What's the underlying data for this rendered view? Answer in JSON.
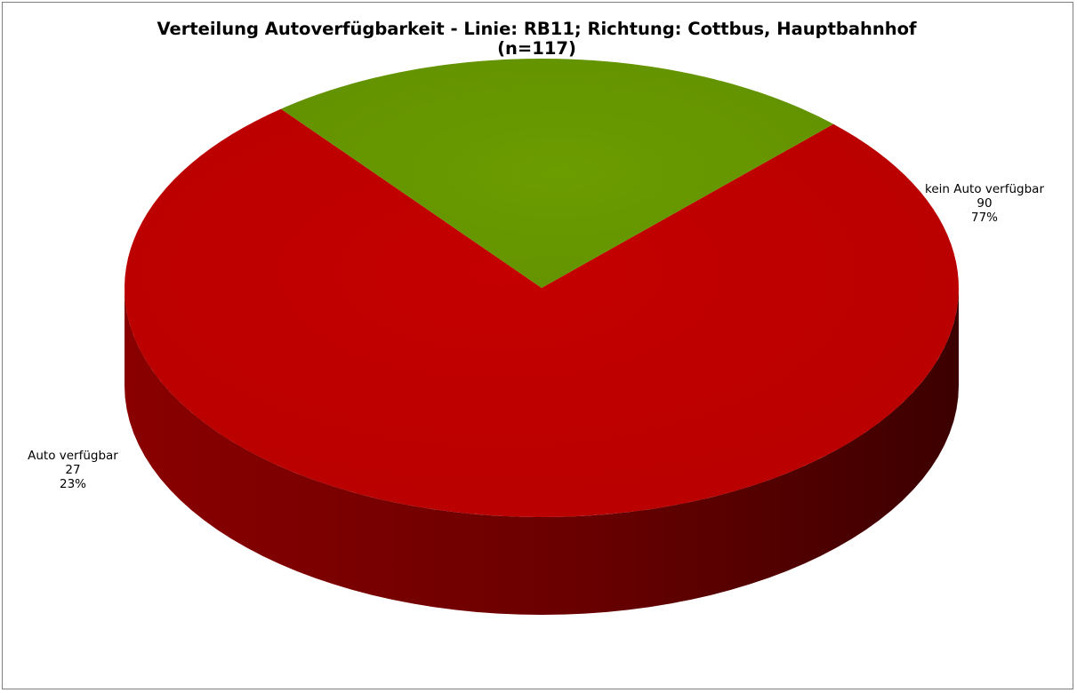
{
  "chart_data": {
    "type": "pie",
    "title": "Verteilung Autoverfügbarkeit - Linie: RB11; Richtung: Cottbus, Hauptbahnhof",
    "subtitle": "(n=117)",
    "total": 117,
    "slices": [
      {
        "label": "kein Auto verfügbar",
        "value": 90,
        "percent_label": "77%",
        "color": "#c00000"
      },
      {
        "label": "Auto verfügbar",
        "value": 27,
        "percent_label": "23%",
        "color": "#669900"
      }
    ],
    "style": "3d-pie",
    "legend": "none",
    "data_labels": "outside"
  }
}
